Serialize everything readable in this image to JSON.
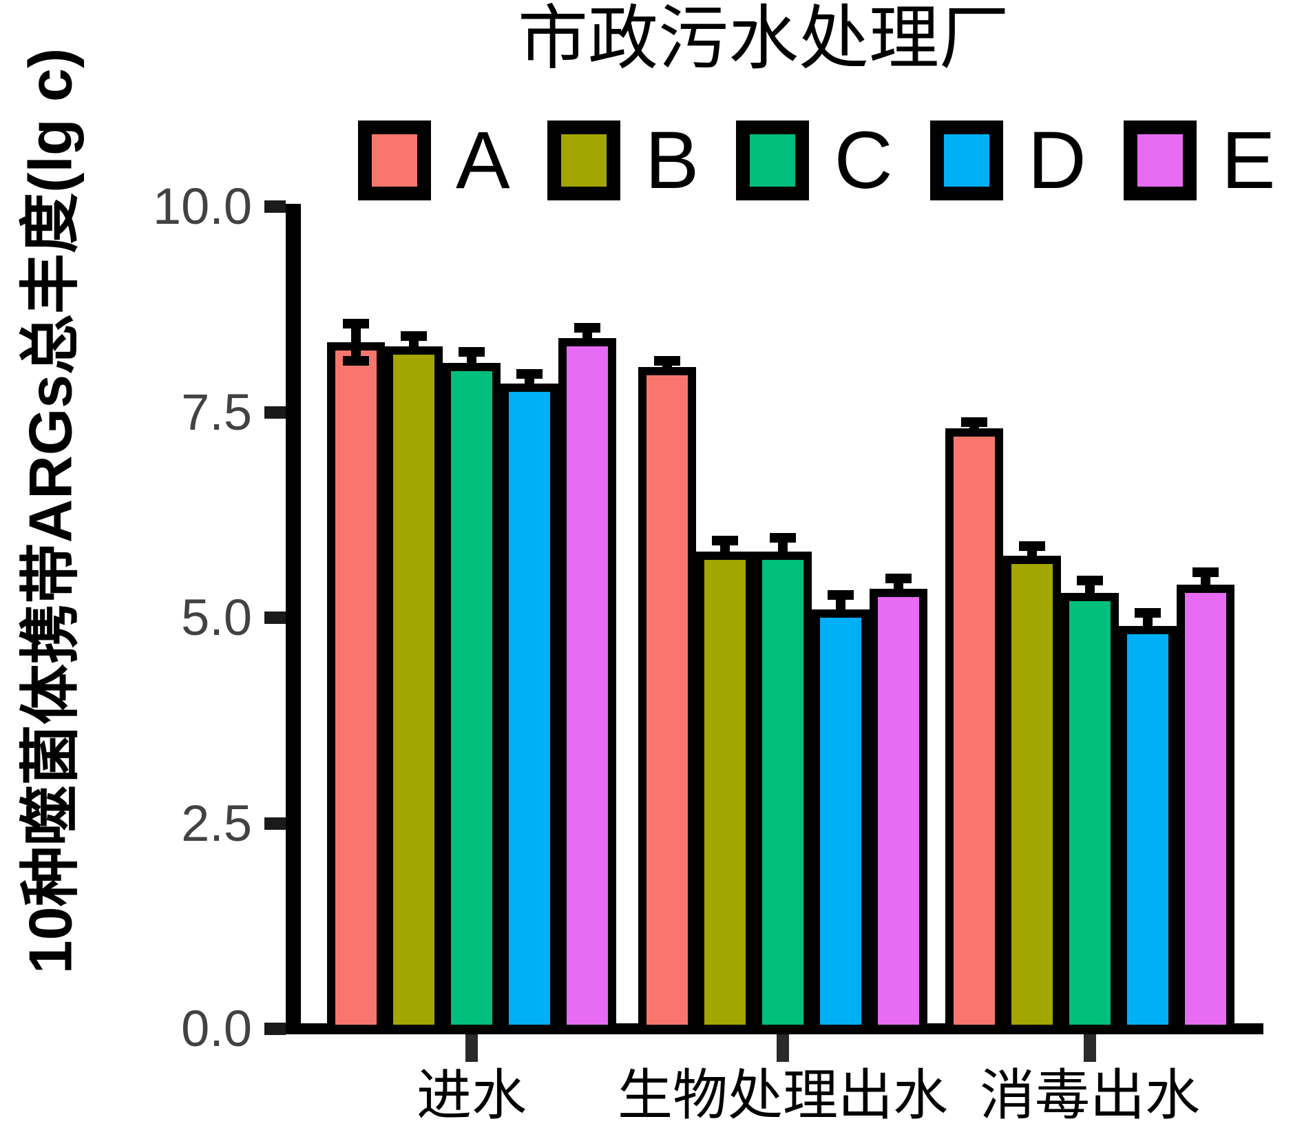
{
  "chart_data": {
    "type": "bar",
    "title": "市政污水处理厂",
    "ylabel": "10种噬菌体携带ARGs总丰度(lg c)",
    "xlabel": "",
    "ylim": [
      0,
      10
    ],
    "yticks": [
      {
        "value": 0.0,
        "label": "0.0"
      },
      {
        "value": 2.5,
        "label": "2.5"
      },
      {
        "value": 5.0,
        "label": "5.0"
      },
      {
        "value": 7.5,
        "label": "7.5"
      },
      {
        "value": 10.0,
        "label": "10.0"
      }
    ],
    "categories": [
      "进水",
      "生物处理出水",
      "消毒出水"
    ],
    "series": [
      {
        "name": "A",
        "color": "#F8766D",
        "values": [
          8.35,
          8.05,
          7.3
        ],
        "errors_up": [
          0.25,
          0.1,
          0.1
        ],
        "errors_down": [
          0.25,
          0,
          0
        ]
      },
      {
        "name": "B",
        "color": "#A3A500",
        "values": [
          8.3,
          5.8,
          5.75
        ],
        "errors_up": [
          0.15,
          0.16,
          0.15
        ],
        "errors_down": [
          0,
          0,
          0
        ]
      },
      {
        "name": "C",
        "color": "#00BF7D",
        "values": [
          8.1,
          5.8,
          5.3
        ],
        "errors_up": [
          0.16,
          0.2,
          0.18
        ],
        "errors_down": [
          0,
          0,
          0
        ]
      },
      {
        "name": "D",
        "color": "#00B0F6",
        "values": [
          7.85,
          5.1,
          4.9
        ],
        "errors_up": [
          0.14,
          0.2,
          0.18
        ],
        "errors_down": [
          0,
          0,
          0
        ]
      },
      {
        "name": "E",
        "color": "#E76BF3",
        "values": [
          8.4,
          5.35,
          5.4
        ],
        "errors_up": [
          0.15,
          0.15,
          0.18
        ],
        "errors_down": [
          0,
          0,
          0
        ]
      }
    ],
    "legend_position": "top",
    "grid": false,
    "bar_outline_color": "#000000",
    "tick_label_color": "#424242",
    "background_color": "#ffffff"
  }
}
